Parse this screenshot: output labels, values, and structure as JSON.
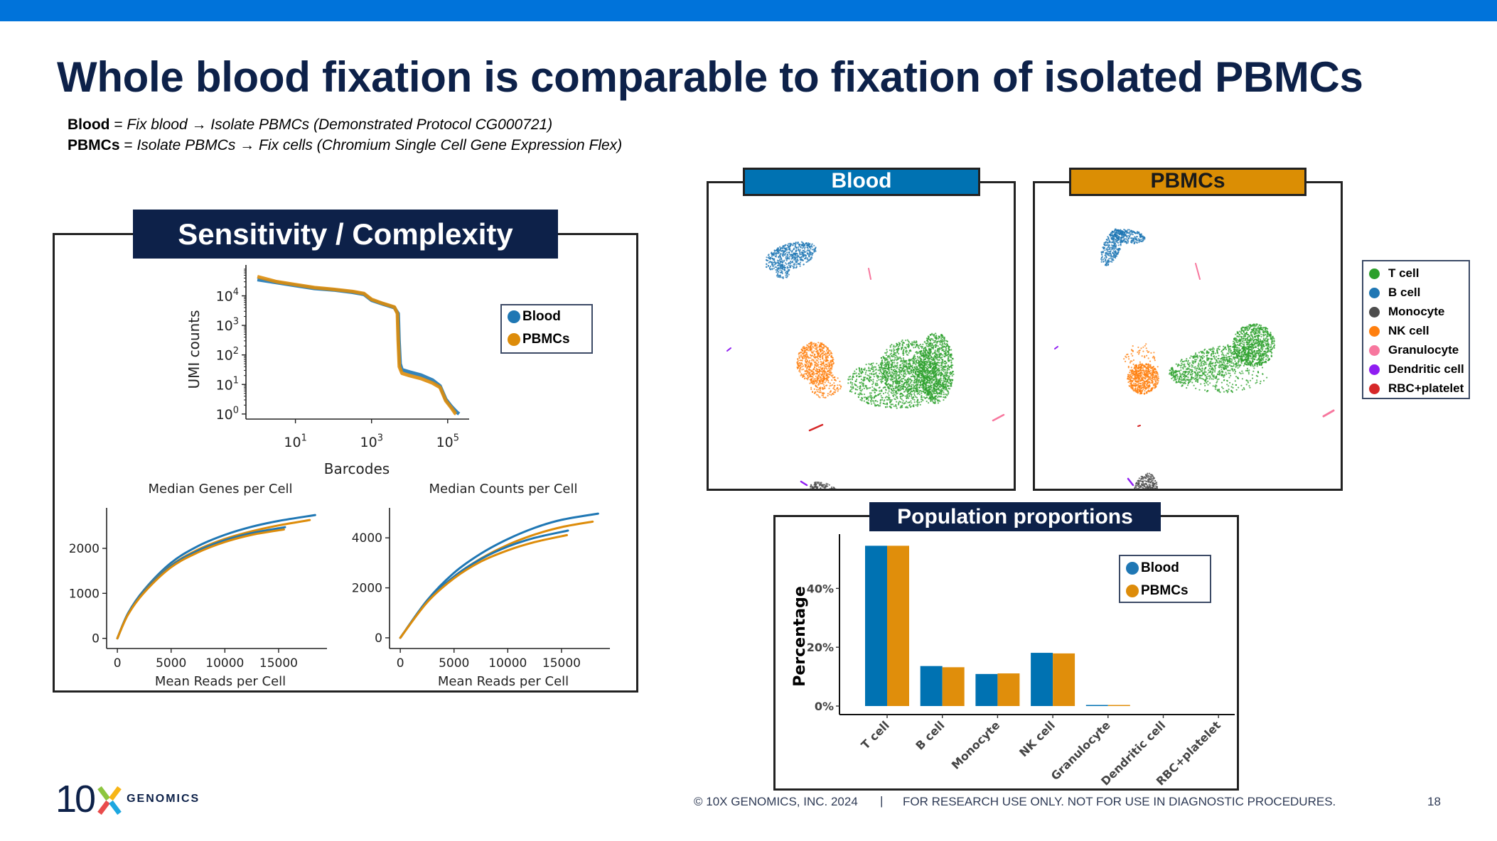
{
  "slide": {
    "title": "Whole blood fixation is comparable to fixation of isolated PBMCs",
    "definitions": [
      {
        "term": "Blood",
        "eq": " = ",
        "text": "Fix blood → Isolate PBMCs (Demonstrated Protocol CG000721)"
      },
      {
        "term": "PBMCs",
        "eq": " = ",
        "text": "Isolate PBMCs → Fix cells (Chromium Single Cell Gene Expression Flex)"
      }
    ],
    "brand_color": "#0073DA",
    "title_color": "#0D2149"
  },
  "colors": {
    "blood": "#1F77B4",
    "pbmcs": "#DD8C0A",
    "blood_bar": "#0072B2",
    "pbmcs_bar": "#E08E0B"
  },
  "sensitivity": {
    "header": "Sensitivity / Complexity",
    "legend": [
      "Blood",
      "PBMCs"
    ]
  },
  "umap": {
    "blood_header": "Blood",
    "pbmcs_header": "PBMCs",
    "blood_header_color": "#0072B2",
    "pbmcs_header_color": "#DB8E04",
    "legend": [
      {
        "label": "T cell",
        "color": "#2CA02C"
      },
      {
        "label": "B cell",
        "color": "#1F77B4"
      },
      {
        "label": "Monocyte",
        "color": "#4D4D4D"
      },
      {
        "label": "NK cell",
        "color": "#FF7F0E"
      },
      {
        "label": "Granulocyte",
        "color": "#F7779E"
      },
      {
        "label": "Dendritic cell",
        "color": "#8F1DF2"
      },
      {
        "label": "RBC+platelet",
        "color": "#D62728"
      }
    ]
  },
  "population": {
    "header": "Population proportions",
    "legend": [
      "Blood",
      "PBMCs"
    ]
  },
  "chart_data": [
    {
      "type": "line",
      "title": "",
      "xlabel": "Barcodes",
      "ylabel": "UMI counts",
      "xscale": "log",
      "yscale": "log",
      "xticks": [
        "10^1",
        "10^3",
        "10^5"
      ],
      "yticks": [
        "10^0",
        "10^1",
        "10^2",
        "10^3",
        "10^4"
      ],
      "xtick_labels": [
        {
          "base": "10",
          "exp": "1"
        },
        {
          "base": "10",
          "exp": "3"
        },
        {
          "base": "10",
          "exp": "5"
        }
      ],
      "ytick_labels": [
        {
          "base": "10",
          "exp": "0"
        },
        {
          "base": "10",
          "exp": "1"
        },
        {
          "base": "10",
          "exp": "2"
        },
        {
          "base": "10",
          "exp": "3"
        },
        {
          "base": "10",
          "exp": "4"
        }
      ],
      "xlim_log10": [
        -0.3,
        5.9
      ],
      "ylim_log10": [
        -0.1,
        4.95
      ],
      "legend": "right",
      "series": [
        {
          "name": "Blood",
          "log10_x": [
            0,
            0.5,
            1,
            1.5,
            2,
            2.5,
            2.8,
            3,
            3.3,
            3.6,
            3.7,
            3.72,
            3.75,
            3.8,
            4,
            4.3,
            4.6,
            4.8,
            4.95,
            5.1,
            5.25,
            5.3
          ],
          "log10_y": [
            4.55,
            4.45,
            4.35,
            4.25,
            4.2,
            4.12,
            4.05,
            3.85,
            3.72,
            3.6,
            3.4,
            2.5,
            1.7,
            1.5,
            1.42,
            1.32,
            1.15,
            0.95,
            0.5,
            0.25,
            0.05,
            0
          ]
        },
        {
          "name": "PBMCs",
          "log10_x": [
            0,
            0.5,
            1,
            1.5,
            2,
            2.5,
            2.8,
            3,
            3.3,
            3.6,
            3.68,
            3.7,
            3.73,
            3.8,
            4,
            4.3,
            4.6,
            4.8,
            4.95,
            5.1,
            5.2,
            5.22
          ],
          "log10_y": [
            4.65,
            4.48,
            4.38,
            4.28,
            4.22,
            4.15,
            4.08,
            3.88,
            3.74,
            3.62,
            3.4,
            2.5,
            1.6,
            1.38,
            1.3,
            1.2,
            1.05,
            0.9,
            0.45,
            0.2,
            0.02,
            0
          ]
        }
      ]
    },
    {
      "type": "line",
      "title": "Median Genes per Cell",
      "xlabel": "Mean Reads per Cell",
      "ylabel": "",
      "xticks": [
        0,
        5000,
        10000,
        15000
      ],
      "yticks": [
        0,
        1000,
        2000
      ],
      "xlim": [
        -1000,
        19500
      ],
      "ylim": [
        -100,
        2900
      ],
      "series": [
        {
          "name": "Blood",
          "x": [
            0,
            1000,
            2500,
            5000,
            7500,
            10000,
            12500,
            15000,
            18400
          ],
          "y": [
            0,
            560,
            1080,
            1680,
            2050,
            2300,
            2480,
            2610,
            2740
          ]
        },
        {
          "name": "PBMCs",
          "x": [
            0,
            1000,
            2500,
            5000,
            7500,
            10000,
            12500,
            15000,
            17900
          ],
          "y": [
            0,
            540,
            1050,
            1620,
            1970,
            2210,
            2380,
            2510,
            2630
          ]
        },
        {
          "name": "Blood",
          "x": [
            0,
            1000,
            2500,
            5000,
            7500,
            10000,
            12500,
            15600
          ],
          "y": [
            0,
            540,
            1040,
            1610,
            1950,
            2180,
            2340,
            2470
          ]
        },
        {
          "name": "PBMCs",
          "x": [
            0,
            1000,
            2500,
            5000,
            7500,
            10000,
            12500,
            15500
          ],
          "y": [
            0,
            530,
            1020,
            1580,
            1910,
            2140,
            2300,
            2420
          ]
        }
      ]
    },
    {
      "type": "line",
      "title": "Median Counts per Cell",
      "xlabel": "Mean Reads per Cell",
      "ylabel": "",
      "xticks": [
        0,
        5000,
        10000,
        15000
      ],
      "yticks": [
        0,
        2000,
        4000
      ],
      "xlim": [
        -1000,
        19500
      ],
      "ylim": [
        -200,
        5200
      ],
      "series": [
        {
          "name": "Blood",
          "x": [
            0,
            2500,
            5000,
            7500,
            10000,
            12500,
            15000,
            18400
          ],
          "y": [
            0,
            1500,
            2600,
            3370,
            3950,
            4400,
            4720,
            4970
          ]
        },
        {
          "name": "PBMCs",
          "x": [
            0,
            2500,
            5000,
            7500,
            10000,
            12500,
            15000,
            17900
          ],
          "y": [
            0,
            1450,
            2450,
            3170,
            3720,
            4130,
            4430,
            4650
          ]
        },
        {
          "name": "Blood",
          "x": [
            0,
            2500,
            5000,
            7500,
            10000,
            12500,
            15600
          ],
          "y": [
            0,
            1450,
            2450,
            3150,
            3650,
            4000,
            4290
          ]
        },
        {
          "name": "PBMCs",
          "x": [
            0,
            2500,
            5000,
            7500,
            10000,
            12500,
            15500
          ],
          "y": [
            0,
            1420,
            2380,
            3050,
            3500,
            3830,
            4110
          ]
        }
      ]
    },
    {
      "type": "bar",
      "title": "Population proportions",
      "xlabel": "",
      "ylabel": "Percentage",
      "categories": [
        "T cell",
        "B cell",
        "Monocyte",
        "NK cell",
        "Granulocyte",
        "Dendritic cell",
        "RBC+platelet"
      ],
      "yticks": [
        "0%",
        "20%",
        "40%"
      ],
      "ytick_values": [
        0,
        20,
        40
      ],
      "ylim": [
        -1.5,
        57
      ],
      "legend": "top-right",
      "series": [
        {
          "name": "Blood",
          "values": [
            54.5,
            13.6,
            10.9,
            18.1,
            0.1,
            0.0,
            0.0
          ]
        },
        {
          "name": "PBMCs",
          "values": [
            54.5,
            13.2,
            11.1,
            17.9,
            0.3,
            0.0,
            0.0
          ]
        }
      ]
    }
  ],
  "footer": {
    "logo_number": "10",
    "logo_x": "X",
    "logo_word": "GENOMICS",
    "copyright": "© 10X GENOMICS, INC. 2024",
    "separator": "|",
    "disclaimer": "FOR RESEARCH USE ONLY. NOT FOR USE IN DIAGNOSTIC PROCEDURES.",
    "page_number": "18"
  }
}
